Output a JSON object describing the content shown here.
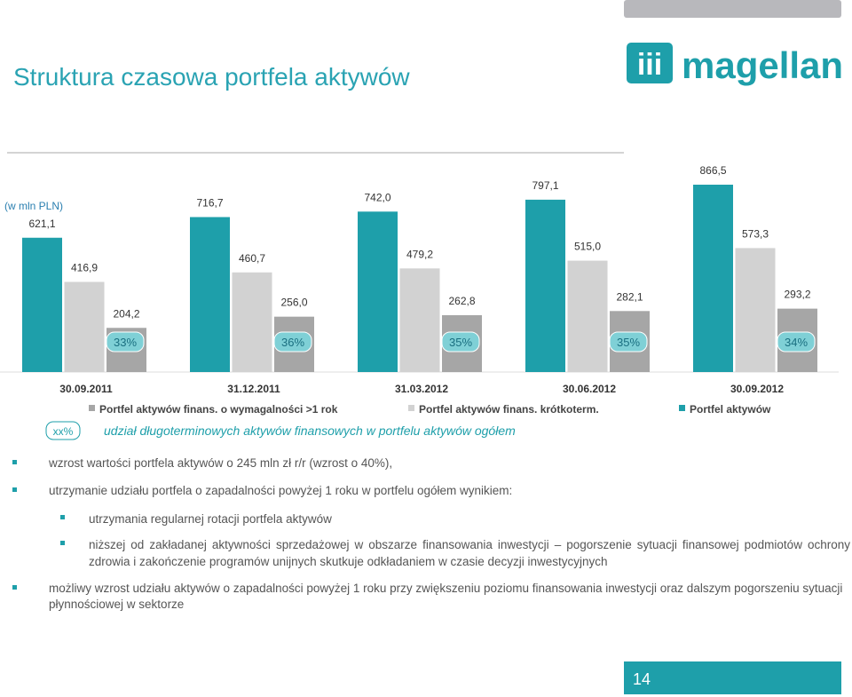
{
  "header": {
    "title": "Struktura czasowa portfela aktywów",
    "logo": "magellan"
  },
  "chart_data": {
    "type": "bar",
    "unit_note": "(w mln PLN)",
    "categories": [
      "30.09.2011",
      "31.12.2011",
      "31.03.2012",
      "30.06.2012",
      "30.09.2012"
    ],
    "series": [
      {
        "name": "Portfel aktywów",
        "color": "#1e9faa",
        "values": [
          621.1,
          716.7,
          742.0,
          797.1,
          866.5
        ],
        "value_labels": [
          "621,1",
          "716,7",
          "742,0",
          "797,1",
          "866,5"
        ]
      },
      {
        "name": "Portfel aktywów finans. krótkoterm.",
        "color": "#d2d2d2",
        "values": [
          416.9,
          460.7,
          479.2,
          515.0,
          573.3
        ],
        "value_labels": [
          "416,9",
          "460,7",
          "479,2",
          "515,0",
          "573,3"
        ]
      },
      {
        "name": "Portfel aktywów finans. o wymagalności >1 rok",
        "color": "#a6a6a6",
        "values": [
          204.2,
          256.0,
          262.8,
          282.1,
          293.2
        ],
        "value_labels": [
          "204,2",
          "256,0",
          "262,8",
          "282,1",
          "293,2"
        ]
      }
    ],
    "shares": [
      33,
      36,
      35,
      35,
      34
    ],
    "share_labels": [
      "33%",
      "36%",
      "35%",
      "35%",
      "34%"
    ]
  },
  "note": {
    "badge": "xx%",
    "text": "udział długoterminowych aktywów finansowych w portfelu aktywów ogółem"
  },
  "bullets": [
    {
      "text": "wzrost wartości portfela aktywów o 245 mln zł r/r (wzrost o 40%),"
    },
    {
      "text": "utrzymanie udziału portfela o zapadalności powyżej 1 roku w portfelu ogółem wynikiem:",
      "sub": [
        "utrzymania regularnej rotacji portfela aktywów",
        "niższej od zakładanej aktywności sprzedażowej w obszarze finansowania inwestycji – pogorszenie sytuacji finansowej podmiotów ochrony zdrowia i zakończenie programów unijnych skutkuje odkładaniem w czasie decyzji inwestycyjnych"
      ]
    },
    {
      "text": "możliwy wzrost udziału aktywów o zapadalności powyżej 1 roku przy zwiększeniu poziomu finansowania inwestycji oraz dalszym pogorszeniu sytuacji płynnościowej w sektorze"
    }
  ],
  "page_number": "14"
}
